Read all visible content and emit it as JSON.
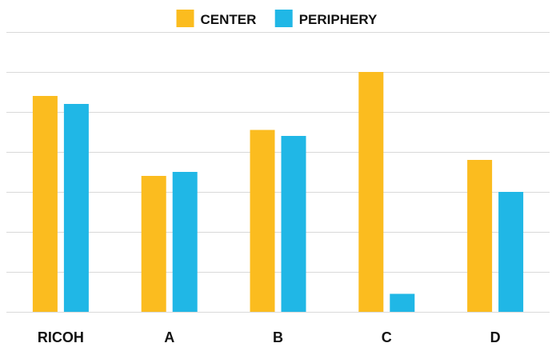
{
  "chart_data": {
    "type": "bar",
    "title": "",
    "xlabel": "",
    "ylabel": "",
    "categories": [
      "RICOH",
      "A",
      "B",
      "C",
      "D"
    ],
    "series": [
      {
        "name": "CENTER",
        "color": "#fbbc1f",
        "values": [
          5.4,
          3.4,
          4.55,
          6.0,
          3.8
        ]
      },
      {
        "name": "PERIPHERY",
        "color": "#20b7e6",
        "values": [
          5.2,
          3.5,
          4.4,
          0.45,
          3.0
        ]
      }
    ],
    "ylim": [
      0,
      7
    ],
    "gridlines": true,
    "y_tick_labels_visible": false,
    "legend_position": "top-center"
  }
}
